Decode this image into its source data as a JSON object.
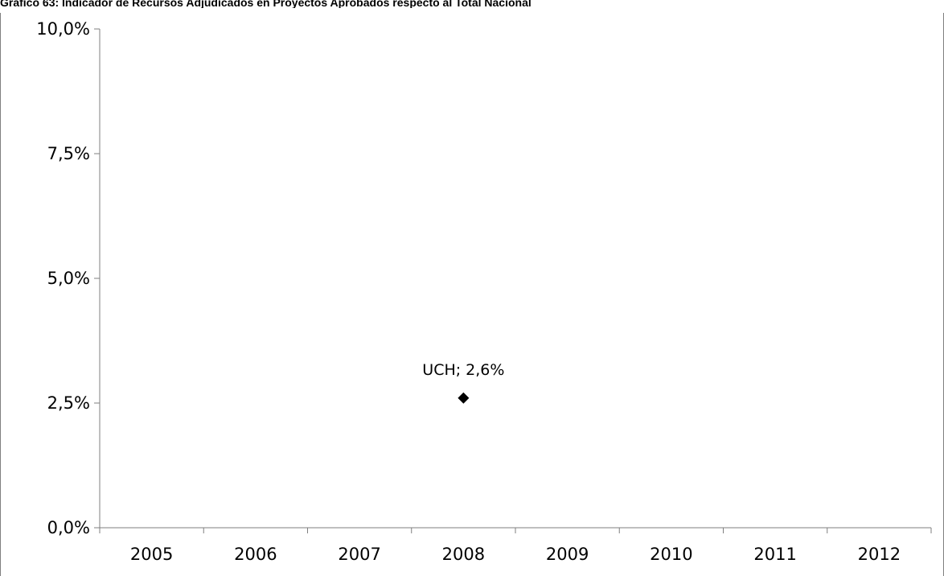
{
  "title": "Gráfico 63: Indicador de Recursos Adjudicados en Proyectos Aprobados respecto al Total Nacional",
  "chart_data": {
    "type": "scatter",
    "title": "Gráfico 63: Indicador de Recursos Adjudicados en Proyectos Aprobados respecto al Total Nacional",
    "xlabel": "",
    "ylabel": "",
    "categories": [
      "2005",
      "2006",
      "2007",
      "2008",
      "2009",
      "2010",
      "2011",
      "2012"
    ],
    "ylim": [
      0,
      10
    ],
    "yticks": [
      "0,0%",
      "2,5%",
      "5,0%",
      "7,5%",
      "10,0%"
    ],
    "ytick_values": [
      0,
      2.5,
      5,
      7.5,
      10
    ],
    "grid": false,
    "points": [
      {
        "x": "2008",
        "y": 2.6,
        "label": "UCH; 2,6%",
        "marker": "diamond",
        "color": "#000000"
      }
    ]
  }
}
